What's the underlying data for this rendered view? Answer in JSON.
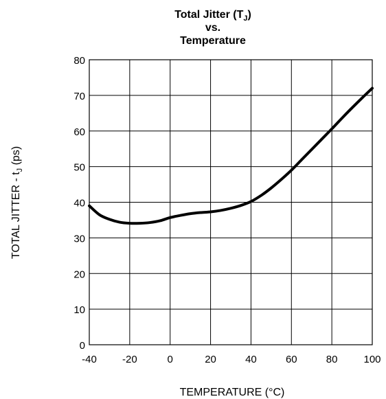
{
  "chart_data": {
    "type": "line",
    "title": {
      "line1_prefix": "Total Jitter (T",
      "line1_sub": "J",
      "line1_suffix": ")",
      "line2": "vs.",
      "line3": "Temperature"
    },
    "xlabel": "TEMPERATURE (°C)",
    "ylabel": {
      "prefix": "TOTAL JITTER - t",
      "sub": "J",
      "suffix": " (ps)"
    },
    "xlim": [
      -40,
      100
    ],
    "ylim": [
      0,
      80
    ],
    "x_ticks": [
      "-40",
      "-20",
      "0",
      "20",
      "40",
      "60",
      "80",
      "100"
    ],
    "y_ticks": [
      "0",
      "10",
      "20",
      "30",
      "40",
      "50",
      "60",
      "70",
      "80"
    ],
    "grid": true,
    "series": [
      {
        "x": [
          -40,
          -35,
          -30,
          -25,
          -20,
          -15,
          -10,
          -5,
          0,
          5,
          10,
          15,
          20,
          25,
          30,
          35,
          40,
          45,
          50,
          55,
          60,
          65,
          70,
          75,
          80,
          85,
          90,
          95,
          100
        ],
        "values": [
          39,
          36.5,
          35.2,
          34.4,
          34.1,
          34.1,
          34.3,
          34.8,
          35.7,
          36.3,
          36.8,
          37.1,
          37.3,
          37.7,
          38.3,
          39.1,
          40.2,
          41.9,
          44.0,
          46.4,
          49.0,
          51.9,
          54.8,
          57.7,
          60.6,
          63.6,
          66.5,
          69.3,
          72.0
        ]
      }
    ],
    "colors": {
      "line": "#000000",
      "grid": "#000000"
    }
  }
}
